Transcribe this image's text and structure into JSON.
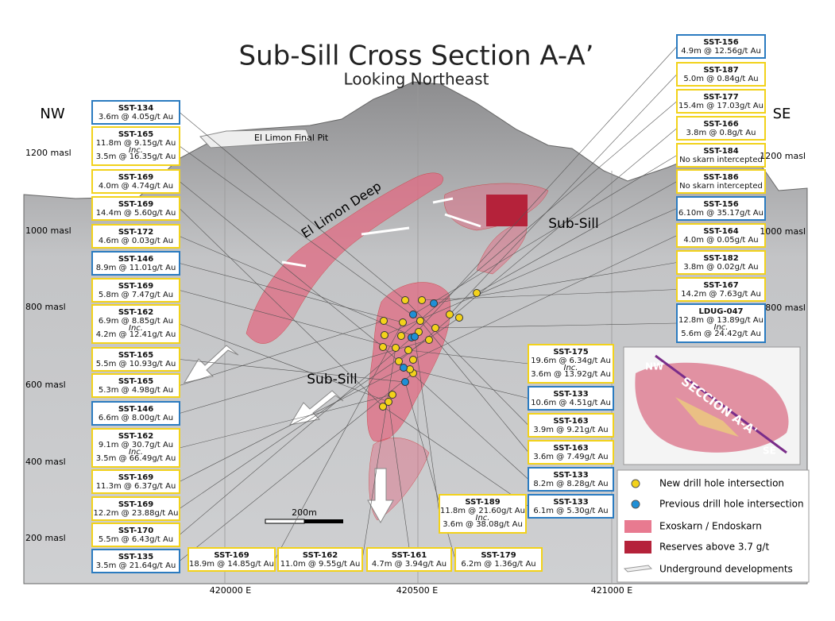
{
  "title": "Sub-Sill Cross Section A-A’",
  "subtitle": "Looking Northeast",
  "directions": {
    "left": "NW",
    "right": "SE"
  },
  "elevations_left": [
    "1200 masl",
    "1000 masl",
    "800 masl",
    "600 masl",
    "400 masl",
    "200 masl"
  ],
  "elevations_right": [
    "1200 masl",
    "1000 masl",
    "800 masl"
  ],
  "eastings": [
    "420000 E",
    "420500 E",
    "421000 E"
  ],
  "labels": {
    "pit": "El Limon Final Pit",
    "deep": "El Limon Deep",
    "subsill_upper": "Sub-Sill",
    "subsill_lower": "Sub-Sill"
  },
  "scale": "200m",
  "callouts": [
    {
      "hole": "SST-134",
      "lines": [
        "3.6m @ 4.05g/t Au"
      ],
      "border": "#2b7bc0"
    },
    {
      "hole": "SST-165",
      "lines": [
        "11.8m @ 9.15g/t Au",
        "Inc.",
        "3.5m @ 16.35g/t Au"
      ],
      "border": "#f2d21b"
    },
    {
      "hole": "SST-169",
      "lines": [
        "4.0m @ 4.74g/t Au"
      ],
      "border": "#f2d21b"
    },
    {
      "hole": "SST-169",
      "lines": [
        "14.4m @ 5.60g/t Au"
      ],
      "border": "#f2d21b"
    },
    {
      "hole": "SST-172",
      "lines": [
        "4.6m @ 0.03g/t Au"
      ],
      "border": "#f2d21b"
    },
    {
      "hole": "SST-146",
      "lines": [
        "8.9m @ 11.01g/t Au"
      ],
      "border": "#2b7bc0"
    },
    {
      "hole": "SST-169",
      "lines": [
        "5.8m @ 7.47g/t Au"
      ],
      "border": "#f2d21b"
    },
    {
      "hole": "SST-162",
      "lines": [
        "6.9m @ 8.85g/t Au",
        "Inc.",
        "4.2m @ 12.41g/t Au"
      ],
      "border": "#f2d21b"
    },
    {
      "hole": "SST-165",
      "lines": [
        "5.5m @ 10.93g/t Au"
      ],
      "border": "#f2d21b"
    },
    {
      "hole": "SST-165",
      "lines": [
        "5.3m @ 4.98g/t Au"
      ],
      "border": "#f2d21b"
    },
    {
      "hole": "SST-146",
      "lines": [
        "6.6m @ 8.00g/t Au"
      ],
      "border": "#2b7bc0"
    },
    {
      "hole": "SST-162",
      "lines": [
        "9.1m @ 30.7g/t Au",
        "Inc.",
        "3.5m @ 66.49g/t Au"
      ],
      "border": "#f2d21b"
    },
    {
      "hole": "SST-169",
      "lines": [
        "11.3m @ 6.37g/t Au"
      ],
      "border": "#f2d21b"
    },
    {
      "hole": "SST-169",
      "lines": [
        "12.2m @ 23.88g/t Au"
      ],
      "border": "#f2d21b"
    },
    {
      "hole": "SST-170",
      "lines": [
        "5.5m @ 6.43g/t Au"
      ],
      "border": "#f2d21b"
    },
    {
      "hole": "SST-135",
      "lines": [
        "3.5m @ 21.64g/t Au"
      ],
      "border": "#2b7bc0"
    },
    {
      "hole": "SST-156",
      "lines": [
        "4.9m @ 12.56g/t Au"
      ],
      "border": "#2b7bc0"
    },
    {
      "hole": "SST-187",
      "lines": [
        "5.0m @ 0.84g/t Au"
      ],
      "border": "#f2d21b"
    },
    {
      "hole": "SST-177",
      "lines": [
        "15.4m @ 17.03g/t Au"
      ],
      "border": "#f2d21b"
    },
    {
      "hole": "SST-166",
      "lines": [
        "3.8m @ 0.8g/t Au"
      ],
      "border": "#f2d21b"
    },
    {
      "hole": "SST-184",
      "lines": [
        "No skarn intercepted"
      ],
      "border": "#f2d21b"
    },
    {
      "hole": "SST-186",
      "lines": [
        "No skarn intercepted"
      ],
      "border": "#f2d21b"
    },
    {
      "hole": "SST-156",
      "lines": [
        "6.10m @ 35.17g/t Au"
      ],
      "border": "#2b7bc0"
    },
    {
      "hole": "SST-164",
      "lines": [
        "4.0m @ 0.05g/t Au"
      ],
      "border": "#f2d21b"
    },
    {
      "hole": "SST-182",
      "lines": [
        "3.8m @ 0.02g/t Au"
      ],
      "border": "#f2d21b"
    },
    {
      "hole": "SST-167",
      "lines": [
        "14.2m @ 7.63g/t Au"
      ],
      "border": "#f2d21b"
    },
    {
      "hole": "LDUG-047",
      "lines": [
        "12.8m @ 13.89g/t Au",
        "Inc.",
        "5.6m @ 24.42g/t Au"
      ],
      "border": "#2b7bc0"
    },
    {
      "hole": "SST-175",
      "lines": [
        "19.6m @ 6.34g/t Au",
        "Inc.",
        "3.6m @ 13.92g/t Au"
      ],
      "border": "#f2d21b"
    },
    {
      "hole": "SST-133",
      "lines": [
        "10.6m @ 4.51g/t Au"
      ],
      "border": "#2b7bc0"
    },
    {
      "hole": "SST-163",
      "lines": [
        "3.9m @ 9.21g/t Au"
      ],
      "border": "#f2d21b"
    },
    {
      "hole": "SST-163",
      "lines": [
        "3.6m @ 7.49g/t Au"
      ],
      "border": "#f2d21b"
    },
    {
      "hole": "SST-133",
      "lines": [
        "8.2m @ 8.28g/t Au"
      ],
      "border": "#2b7bc0"
    },
    {
      "hole": "SST-133",
      "lines": [
        "6.1m @ 5.30g/t Au"
      ],
      "border": "#2b7bc0"
    },
    {
      "hole": "SST-189",
      "lines": [
        "11.8m @ 21.60g/t Au",
        "Inc.",
        "3.6m @ 38.08g/t Au"
      ],
      "border": "#f2d21b"
    },
    {
      "hole": "SST-169",
      "lines": [
        "18.9m @ 14.85g/t Au"
      ],
      "border": "#f2d21b"
    },
    {
      "hole": "SST-162",
      "lines": [
        "11.0m @ 9.55g/t Au"
      ],
      "border": "#f2d21b"
    },
    {
      "hole": "SST-161",
      "lines": [
        "4.7m @ 3.94g/t Au"
      ],
      "border": "#f2d21b"
    },
    {
      "hole": "SST-179",
      "lines": [
        "6.2m @ 1.36g/t Au"
      ],
      "border": "#f2d21b"
    }
  ],
  "legend": [
    "New drill hole intersection",
    "Previous drill hole intersection",
    "Exoskarn / Endoskarn",
    "Reserves above 3.7 g/t",
    "Underground developments"
  ],
  "inset": {
    "nw": "NW",
    "se": "SE",
    "section": "SECCION A-A'"
  }
}
